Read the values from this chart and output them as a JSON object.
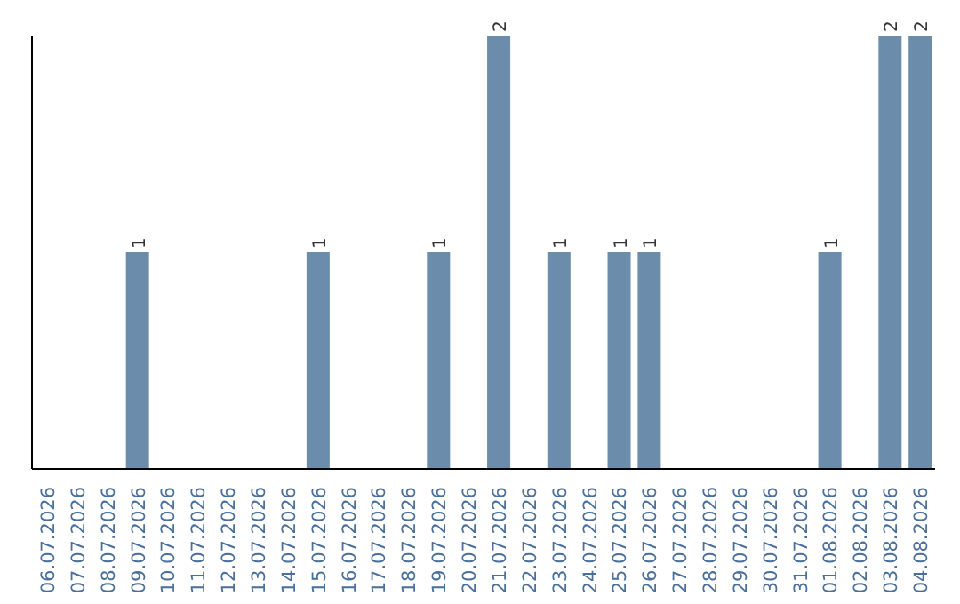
{
  "chart_data": {
    "type": "bar",
    "categories": [
      "06.07.2026",
      "07.07.2026",
      "08.07.2026",
      "09.07.2026",
      "10.07.2026",
      "11.07.2026",
      "12.07.2026",
      "13.07.2026",
      "14.07.2026",
      "15.07.2026",
      "16.07.2026",
      "17.07.2026",
      "18.07.2026",
      "19.07.2026",
      "20.07.2026",
      "21.07.2026",
      "22.07.2026",
      "23.07.2026",
      "24.07.2026",
      "25.07.2026",
      "26.07.2026",
      "27.07.2026",
      "28.07.2026",
      "29.07.2026",
      "30.07.2026",
      "31.07.2026",
      "01.08.2026",
      "02.08.2026",
      "03.08.2026",
      "04.08.2026"
    ],
    "values": [
      0,
      0,
      0,
      1,
      0,
      0,
      0,
      0,
      0,
      1,
      0,
      0,
      0,
      1,
      0,
      2,
      0,
      1,
      0,
      1,
      1,
      0,
      0,
      0,
      0,
      0,
      1,
      0,
      2,
      2
    ],
    "value_labels": [
      null,
      null,
      null,
      "1",
      null,
      null,
      null,
      null,
      null,
      "1",
      null,
      null,
      null,
      "1",
      null,
      "2",
      null,
      "1",
      null,
      "1",
      "1",
      null,
      null,
      null,
      null,
      null,
      "1",
      null,
      "2",
      "2"
    ],
    "color": "#6b8caa",
    "tick_labels": "x"
  }
}
